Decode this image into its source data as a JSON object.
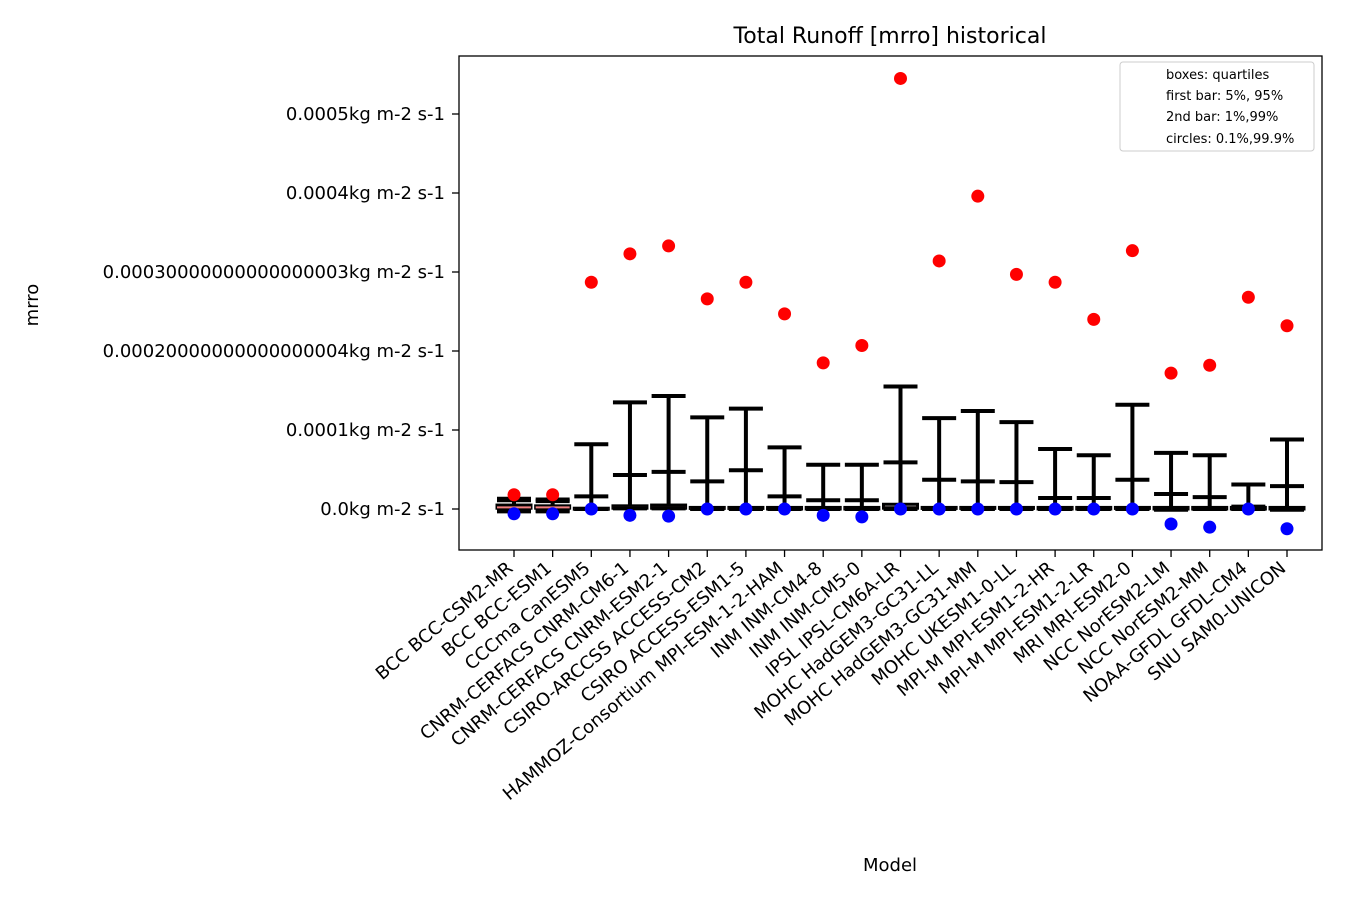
{
  "chart_data": {
    "type": "box",
    "title": "Total Runoff [mrro] historical",
    "xlabel": "Model",
    "ylabel": "mrro",
    "ylim": [
      -5.2e-05,
      0.000575
    ],
    "yticks": [
      {
        "value": 0.0,
        "label": "0.0kg m-2 s-1"
      },
      {
        "value": 0.0001,
        "label": "0.0001kg m-2 s-1"
      },
      {
        "value": 0.0002,
        "label": "0.00020000000000000004kg m-2 s-1"
      },
      {
        "value": 0.0003,
        "label": "0.00030000000000000003kg m-2 s-1"
      },
      {
        "value": 0.0004,
        "label": "0.0004kg m-2 s-1"
      },
      {
        "value": 0.0005,
        "label": "0.0005kg m-2 s-1"
      }
    ],
    "legend": {
      "position": "top-right",
      "entries": [
        "boxes: quartiles",
        "first bar: 5%, 95%",
        "2nd bar: 1%,99%",
        "circles: 0.1%,99.9%"
      ]
    },
    "colors": {
      "high_circle": "#ff0000",
      "low_circle": "#0000ff",
      "whisker": "#000000",
      "median": "#f08080"
    },
    "categories": [
      "BCC BCC-CSM2-MR",
      "BCC BCC-ESM1",
      "CCCma CanESM5",
      "CNRM-CERFACS CNRM-CM6-1",
      "CNRM-CERFACS CNRM-ESM2-1",
      "CSIRO-ARCCSS ACCESS-CM2",
      "CSIRO ACCESS-ESM1-5",
      "HAMMOZ-Consortium MPI-ESM-1-2-HAM",
      "INM INM-CM4-8",
      "INM INM-CM5-0",
      "IPSL IPSL-CM6A-LR",
      "MOHC HadGEM3-GC31-LL",
      "MOHC HadGEM3-GC31-MM",
      "MOHC UKESM1-0-LL",
      "MPI-M MPI-ESM1-2-HR",
      "MPI-M MPI-ESM1-2-LR",
      "MRI MRI-ESM2-0",
      "NCC NorESM2-LM",
      "NCC NorESM2-MM",
      "NOAA-GFDL GFDL-CM4",
      "SNU SAM0-UNICON"
    ],
    "series": [
      {
        "p001": -6e-06,
        "p01": -3e-06,
        "p05": -2e-06,
        "q1": 1e-06,
        "median": 2e-06,
        "q3": 5e-06,
        "p95": 1.1e-05,
        "p99": 1.3e-05,
        "p999": 1.8e-05
      },
      {
        "p001": -6e-06,
        "p01": -3e-06,
        "p05": -2e-06,
        "q1": 1e-06,
        "median": 2e-06,
        "q3": 4e-06,
        "p95": 1e-05,
        "p99": 1.2e-05,
        "p999": 1.8e-05
      },
      {
        "p001": 0.0,
        "p01": 0.0,
        "p05": 0.0,
        "q1": 0.0,
        "median": 0.0,
        "q3": 1e-06,
        "p95": 1.6e-05,
        "p99": 8.2e-05,
        "p999": 0.000287
      },
      {
        "p001": -8e-06,
        "p01": 1e-06,
        "p05": 1e-06,
        "q1": 1e-06,
        "median": 2e-06,
        "q3": 4e-06,
        "p95": 4.3e-05,
        "p99": 0.000135,
        "p999": 0.000323
      },
      {
        "p001": -9e-06,
        "p01": 1e-06,
        "p05": 1e-06,
        "q1": 1e-06,
        "median": 2e-06,
        "q3": 5e-06,
        "p95": 4.7e-05,
        "p99": 0.000143,
        "p999": 0.000333
      },
      {
        "p001": 0.0,
        "p01": 0.0,
        "p05": 0.0,
        "q1": 1e-06,
        "median": 1e-06,
        "q3": 2e-06,
        "p95": 3.5e-05,
        "p99": 0.000116,
        "p999": 0.000266
      },
      {
        "p001": 0.0,
        "p01": 0.0,
        "p05": 0.0,
        "q1": 1e-06,
        "median": 1e-06,
        "q3": 2e-06,
        "p95": 4.9e-05,
        "p99": 0.000127,
        "p999": 0.000287
      },
      {
        "p001": 0.0,
        "p01": 0.0,
        "p05": 0.0,
        "q1": 0.0,
        "median": 1e-06,
        "q3": 2e-06,
        "p95": 1.6e-05,
        "p99": 7.8e-05,
        "p999": 0.000247
      },
      {
        "p001": -8e-06,
        "p01": 0.0,
        "p05": 0.0,
        "q1": 0.0,
        "median": 1e-06,
        "q3": 2e-06,
        "p95": 1.1e-05,
        "p99": 5.6e-05,
        "p999": 0.000185
      },
      {
        "p001": -1e-05,
        "p01": 0.0,
        "p05": 0.0,
        "q1": 0.0,
        "median": 1e-06,
        "q3": 2e-06,
        "p95": 1.1e-05,
        "p99": 5.6e-05,
        "p999": 0.000207
      },
      {
        "p001": 0.0,
        "p01": 0.0,
        "p05": 1e-06,
        "q1": 1e-06,
        "median": 2e-06,
        "q3": 6e-06,
        "p95": 5.9e-05,
        "p99": 0.000155,
        "p999": 0.000545
      },
      {
        "p001": 0.0,
        "p01": 0.0,
        "p05": 0.0,
        "q1": 1e-06,
        "median": 1e-06,
        "q3": 2e-06,
        "p95": 3.7e-05,
        "p99": 0.000115,
        "p999": 0.000314
      },
      {
        "p001": 0.0,
        "p01": 0.0,
        "p05": 0.0,
        "q1": 1e-06,
        "median": 1e-06,
        "q3": 2e-06,
        "p95": 3.5e-05,
        "p99": 0.000124,
        "p999": 0.000396
      },
      {
        "p001": 0.0,
        "p01": 0.0,
        "p05": 0.0,
        "q1": 1e-06,
        "median": 1e-06,
        "q3": 2e-06,
        "p95": 3.4e-05,
        "p99": 0.00011,
        "p999": 0.000297
      },
      {
        "p001": 0.0,
        "p01": 0.0,
        "p05": 0.0,
        "q1": 0.0,
        "median": 1e-06,
        "q3": 2e-06,
        "p95": 1.4e-05,
        "p99": 7.6e-05,
        "p999": 0.000287
      },
      {
        "p001": 0.0,
        "p01": 0.0,
        "p05": 0.0,
        "q1": 0.0,
        "median": 1e-06,
        "q3": 2e-06,
        "p95": 1.4e-05,
        "p99": 6.8e-05,
        "p999": 0.00024
      },
      {
        "p001": 0.0,
        "p01": 0.0,
        "p05": 0.0,
        "q1": 1e-06,
        "median": 1e-06,
        "q3": 2e-06,
        "p95": 3.7e-05,
        "p99": 0.000132,
        "p999": 0.000327
      },
      {
        "p001": -1.9e-05,
        "p01": -1e-06,
        "p05": 0.0,
        "q1": 0.0,
        "median": 1e-06,
        "q3": 2e-06,
        "p95": 1.9e-05,
        "p99": 7.1e-05,
        "p999": 0.000172
      },
      {
        "p001": -2.3e-05,
        "p01": 0.0,
        "p05": 0.0,
        "q1": 0.0,
        "median": 1e-06,
        "q3": 2e-06,
        "p95": 1.5e-05,
        "p99": 6.8e-05,
        "p999": 0.000182
      },
      {
        "p001": 0.0,
        "p01": 0.0,
        "p05": 0.0,
        "q1": 0.0,
        "median": 1e-06,
        "q3": 2e-06,
        "p95": 3e-06,
        "p99": 3.1e-05,
        "p999": 0.000268
      },
      {
        "p001": -2.5e-05,
        "p01": -1e-06,
        "p05": 0.0,
        "q1": 0.0,
        "median": 1e-06,
        "q3": 2e-06,
        "p95": 2.9e-05,
        "p99": 8.8e-05,
        "p999": 0.000232
      }
    ]
  }
}
